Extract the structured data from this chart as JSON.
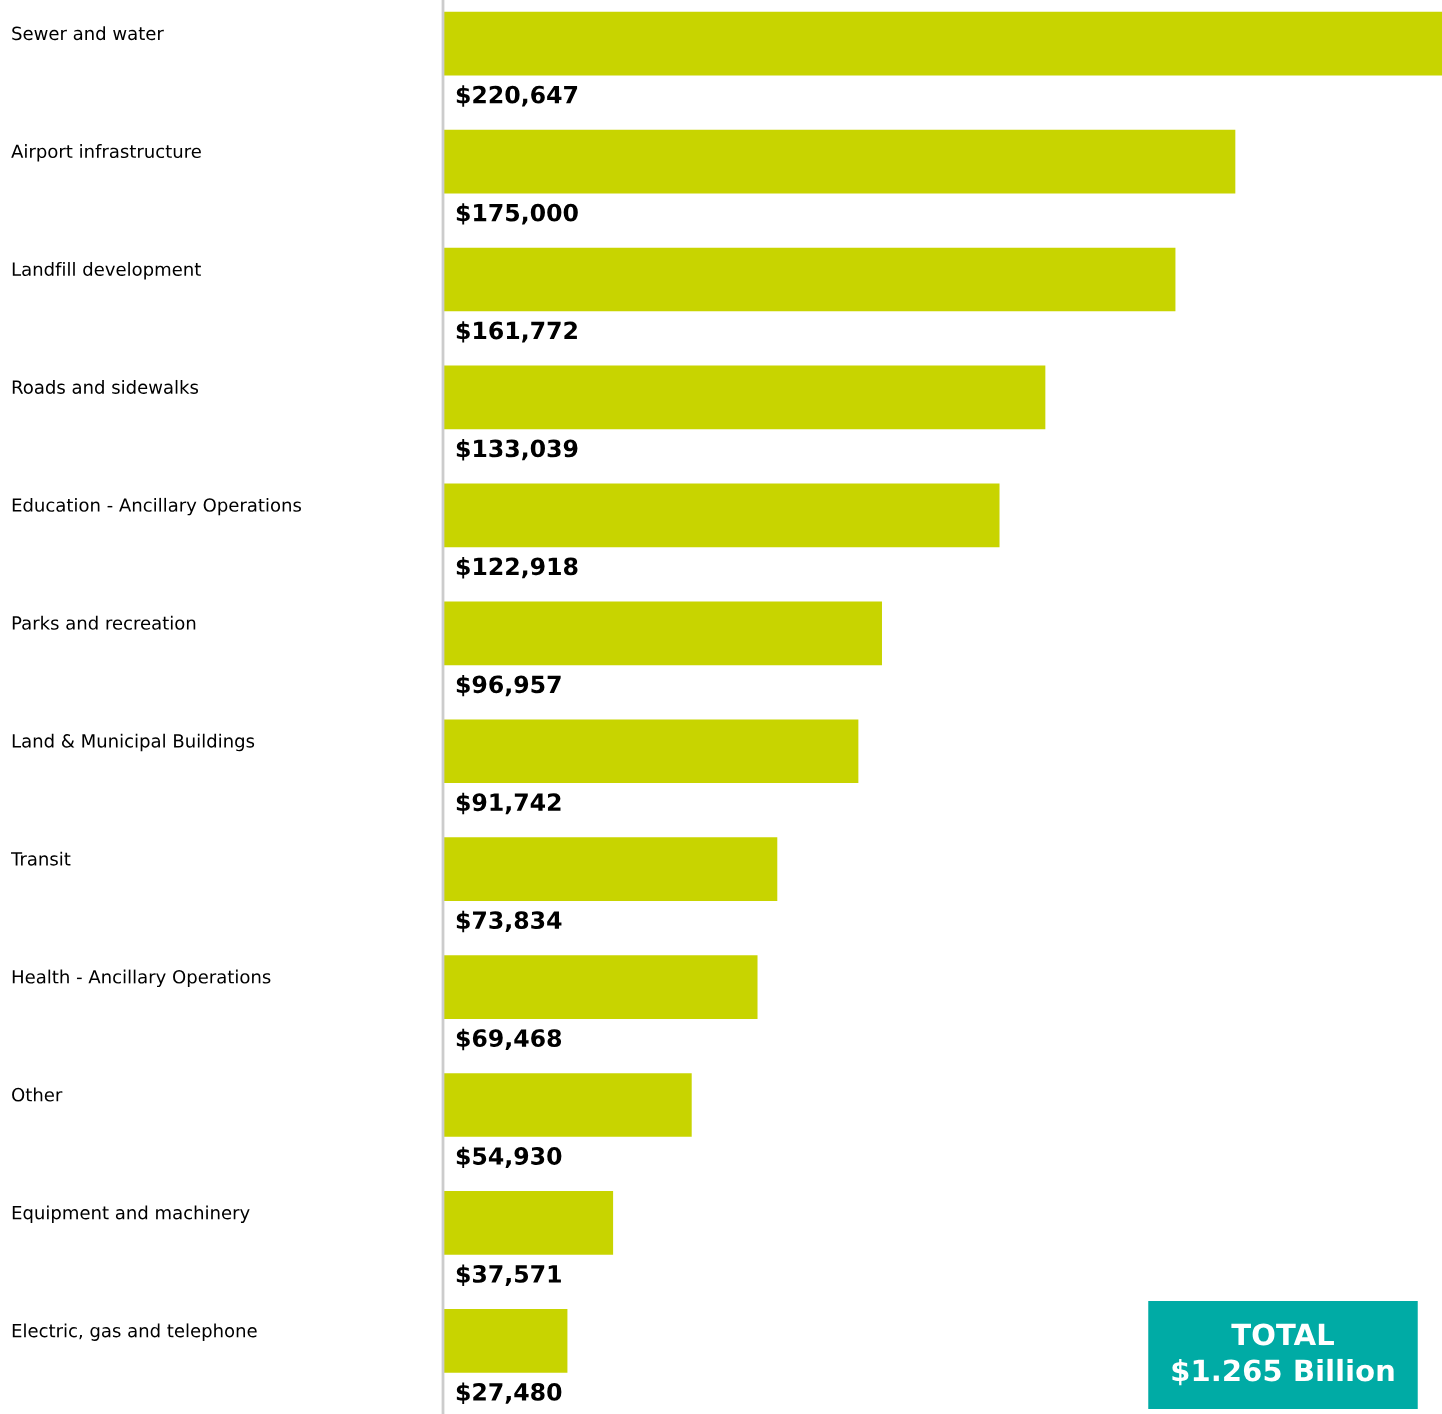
{
  "chart_data": {
    "type": "bar",
    "orientation": "horizontal",
    "categories": [
      "Sewer and water",
      "Airport infrastructure",
      "Landfill development",
      "Roads and sidewalks",
      "Education - Ancillary Operations",
      "Parks and recreation",
      "Land & Municipal Buildings",
      "Transit",
      "Health - Ancillary Operations",
      "Other",
      "Equipment and machinery",
      "Electric, gas and telephone"
    ],
    "values": [
      220647,
      175000,
      161772,
      133039,
      122918,
      96957,
      91742,
      73834,
      69468,
      54930,
      37571,
      27480
    ],
    "value_labels": [
      "$220,647",
      "$175,000",
      "$161,772",
      "$133,039",
      "$122,918",
      "$96,957",
      "$91,742",
      "$73,834",
      "$69,468",
      "$54,930",
      "$37,571",
      "$27,480"
    ],
    "color": "#c8d400",
    "annotations": [
      "TOTAL\n$1.265 Billion"
    ],
    "grid": false,
    "legend": false
  }
}
